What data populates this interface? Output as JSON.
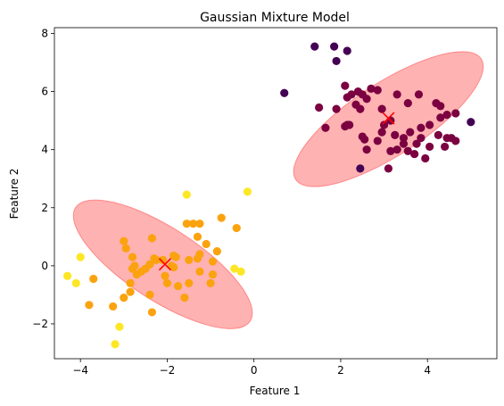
{
  "chart_data": {
    "type": "scatter",
    "title": "Gaussian Mixture Model",
    "xlabel": "Feature 1",
    "ylabel": "Feature 2",
    "xlim": [
      -4.6,
      5.6
    ],
    "ylim": [
      -3.2,
      8.2
    ],
    "xticks": [
      -4,
      -2,
      0,
      2,
      4
    ],
    "yticks": [
      -2,
      0,
      2,
      4,
      6,
      8
    ],
    "xtick_labels": [
      "−4",
      "−2",
      "0",
      "2",
      "4"
    ],
    "ytick_labels": [
      "−2",
      "0",
      "2",
      "4",
      "6",
      "8"
    ],
    "grid": false,
    "colors": {
      "cluster_a": "#440154",
      "cluster_b": "#7b0141",
      "cluster_c": "#fde725",
      "cluster_d": "#fba20f",
      "ellipse_fill": "#ff0000",
      "ellipse_opacity": 0.3,
      "centroid": "#ff0000"
    },
    "series": [
      {
        "color_key": "cluster_a",
        "points": [
          [
            1.4,
            7.55
          ],
          [
            1.85,
            7.55
          ],
          [
            2.15,
            7.4
          ],
          [
            1.9,
            7.05
          ],
          [
            0.7,
            5.95
          ],
          [
            5.0,
            4.95
          ],
          [
            2.45,
            3.35
          ]
        ]
      },
      {
        "color_key": "cluster_b",
        "points": [
          [
            1.5,
            5.45
          ],
          [
            1.65,
            4.75
          ],
          [
            1.9,
            5.4
          ],
          [
            2.1,
            6.2
          ],
          [
            2.15,
            5.8
          ],
          [
            2.25,
            5.9
          ],
          [
            2.35,
            5.55
          ],
          [
            2.4,
            6.0
          ],
          [
            2.45,
            5.4
          ],
          [
            2.5,
            5.9
          ],
          [
            2.6,
            5.75
          ],
          [
            2.7,
            6.1
          ],
          [
            2.85,
            6.05
          ],
          [
            2.95,
            5.4
          ],
          [
            3.15,
            5.0
          ],
          [
            3.3,
            5.9
          ],
          [
            3.55,
            5.6
          ],
          [
            3.8,
            5.9
          ],
          [
            4.2,
            5.6
          ],
          [
            4.3,
            5.5
          ],
          [
            4.45,
            5.2
          ],
          [
            4.65,
            5.25
          ],
          [
            4.3,
            5.1
          ],
          [
            3.85,
            4.75
          ],
          [
            3.6,
            4.6
          ],
          [
            3.45,
            4.4
          ],
          [
            3.25,
            4.5
          ],
          [
            3.45,
            4.2
          ],
          [
            3.3,
            4.0
          ],
          [
            3.85,
            4.4
          ],
          [
            4.05,
            4.1
          ],
          [
            4.25,
            4.5
          ],
          [
            4.4,
            4.1
          ],
          [
            4.45,
            4.4
          ],
          [
            4.55,
            4.4
          ],
          [
            4.65,
            4.3
          ],
          [
            3.7,
            3.85
          ],
          [
            3.55,
            3.95
          ],
          [
            3.15,
            3.95
          ],
          [
            2.85,
            4.3
          ],
          [
            2.6,
            4.0
          ],
          [
            2.1,
            4.8
          ],
          [
            2.15,
            4.85
          ],
          [
            2.55,
            4.35
          ],
          [
            2.95,
            4.6
          ],
          [
            3.1,
            3.35
          ],
          [
            3.95,
            3.7
          ],
          [
            4.05,
            4.85
          ],
          [
            3.0,
            4.85
          ],
          [
            2.2,
            4.85
          ],
          [
            2.5,
            4.45
          ],
          [
            3.75,
            4.2
          ]
        ]
      },
      {
        "color_key": "cluster_c",
        "points": [
          [
            -4.3,
            -0.35
          ],
          [
            -4.1,
            -0.6
          ],
          [
            -4.0,
            0.3
          ],
          [
            -3.2,
            -2.7
          ],
          [
            -3.1,
            -2.1
          ],
          [
            -1.55,
            2.45
          ],
          [
            -0.15,
            2.55
          ],
          [
            -0.3,
            -0.2
          ],
          [
            -0.45,
            -0.1
          ]
        ]
      },
      {
        "color_key": "cluster_d",
        "points": [
          [
            -3.7,
            -0.45
          ],
          [
            -3.8,
            -1.35
          ],
          [
            -3.25,
            -1.4
          ],
          [
            -3.0,
            -1.1
          ],
          [
            -3.0,
            0.85
          ],
          [
            -2.95,
            0.6
          ],
          [
            -2.8,
            0.3
          ],
          [
            -2.75,
            0.0
          ],
          [
            -2.8,
            -0.1
          ],
          [
            -2.85,
            -0.6
          ],
          [
            -2.85,
            -0.9
          ],
          [
            -2.7,
            -0.3
          ],
          [
            -2.6,
            -0.2
          ],
          [
            -2.5,
            -0.1
          ],
          [
            -2.4,
            0.05
          ],
          [
            -2.35,
            -1.6
          ],
          [
            -2.4,
            -1.0
          ],
          [
            -2.35,
            0.95
          ],
          [
            -2.25,
            0.2
          ],
          [
            -2.1,
            0.2
          ],
          [
            -2.05,
            -0.35
          ],
          [
            -2.0,
            -0.6
          ],
          [
            -1.9,
            0.0
          ],
          [
            -1.85,
            0.35
          ],
          [
            -1.8,
            0.3
          ],
          [
            -1.75,
            -0.7
          ],
          [
            -1.6,
            -1.1
          ],
          [
            -1.5,
            0.2
          ],
          [
            -1.55,
            1.45
          ],
          [
            -1.4,
            1.45
          ],
          [
            -1.25,
            1.45
          ],
          [
            -1.3,
            1.0
          ],
          [
            -1.25,
            0.4
          ],
          [
            -1.1,
            0.75
          ],
          [
            -1.25,
            -0.2
          ],
          [
            -1.3,
            0.25
          ],
          [
            -0.95,
            0.15
          ],
          [
            -0.95,
            -0.3
          ],
          [
            -0.75,
            1.65
          ],
          [
            -1.0,
            -0.6
          ],
          [
            -0.4,
            1.3
          ],
          [
            -1.85,
            -0.05
          ],
          [
            -2.3,
            0.25
          ],
          [
            -1.5,
            -0.6
          ],
          [
            -0.85,
            0.5
          ]
        ]
      }
    ],
    "ellipses": [
      {
        "center": [
          3.1,
          5.05
        ],
        "semi_major": 2.55,
        "semi_minor": 1.25,
        "angle_deg": -33
      },
      {
        "center": [
          -2.1,
          0.05
        ],
        "semi_major": 2.4,
        "semi_minor": 1.25,
        "angle_deg": 33
      }
    ],
    "centroids": [
      [
        3.1,
        5.08
      ],
      [
        -2.05,
        0.05
      ]
    ]
  }
}
